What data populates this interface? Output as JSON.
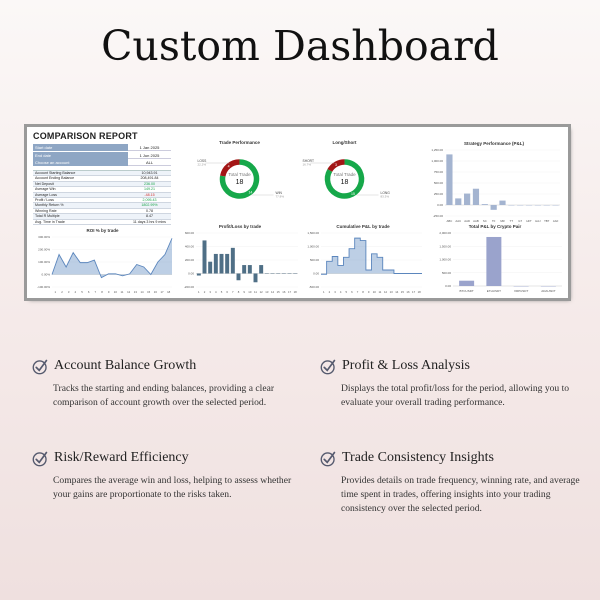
{
  "title": "Custom Dashboard",
  "report": {
    "title": "COMPARISON REPORT",
    "filters": [
      {
        "label": "Start date",
        "value": "1 Jan 2025"
      },
      {
        "label": "End date",
        "value": "1 Jun 2025"
      },
      {
        "label": "Choose an account",
        "value": "ALL"
      }
    ],
    "stats": [
      {
        "label": "Account Starting Balance",
        "value": "10,943.91",
        "color": "#222222"
      },
      {
        "label": "Account Ending Balance",
        "value": "208,491.84",
        "color": "#222222"
      },
      {
        "label": "Net Deposit",
        "value": "236.00",
        "color": "#1aa34a"
      },
      {
        "label": "Average Win",
        "value": "149.21",
        "color": "#1aa34a"
      },
      {
        "label": "Average Loss",
        "value": "-48.15",
        "color": "#d0312d"
      },
      {
        "label": "Profit / Loss",
        "value": "2,095.43",
        "color": "#1aa34a"
      },
      {
        "label": "Monthly Return %",
        "value": "1802.99%",
        "color": "#1aa34a"
      },
      {
        "label": "Winning Rate",
        "value": "0.78",
        "color": "#222222"
      },
      {
        "label": "Total R Multiple",
        "value": "8.47",
        "color": "#222222"
      },
      {
        "label": "Avg. Time in Trade",
        "value": "11 days 3 hrs 9 mins",
        "color": "#222222"
      }
    ]
  },
  "chart_data": [
    {
      "id": "trade-performance",
      "type": "pie",
      "title": "Trade Performance",
      "center_label": "Total Trade",
      "center_value": "18",
      "slices": [
        {
          "name": "LOSS",
          "value": 4,
          "pct": "22.2%",
          "color": "#a31616"
        },
        {
          "name": "WIN",
          "value": 14,
          "pct": "77.8%",
          "color": "#16a84a"
        }
      ]
    },
    {
      "id": "long-short",
      "type": "pie",
      "title": "Long/Short",
      "center_label": "Total Trade",
      "center_value": "18",
      "slices": [
        {
          "name": "SHORT",
          "value": 3,
          "pct": "16.7%",
          "color": "#a31616"
        },
        {
          "name": "LONG",
          "value": 15,
          "pct": "83.3%",
          "color": "#16a84a"
        }
      ]
    },
    {
      "id": "strategy-performance",
      "type": "bar",
      "title": "Strategy Performance (P&L)",
      "categories": [
        "ABC",
        "AAC",
        "AAD",
        "AAB",
        "SC",
        "TF",
        "MR",
        "TT",
        "GT",
        "HFT",
        "HAJ",
        "TBT",
        "AAF"
      ],
      "values": [
        1150,
        150,
        260,
        370,
        20,
        -110,
        100,
        0,
        0,
        0,
        0,
        0,
        0
      ],
      "ylim": [
        -250,
        1250
      ],
      "yticks": [
        -250,
        0,
        250,
        500,
        750,
        1000,
        1250
      ],
      "ytick_labels": [
        "-250.00",
        "0.00",
        "250.00",
        "500.00",
        "750.00",
        "1,000.00",
        "1,250.00"
      ],
      "color": "#a4b4d0",
      "grid": true
    },
    {
      "id": "roi-by-trade",
      "type": "area",
      "title": "ROI % by trade",
      "categories": [
        "1",
        "2",
        "3",
        "4",
        "5",
        "6",
        "7",
        "8",
        "9",
        "10",
        "11",
        "12",
        "13",
        "14",
        "15",
        "16",
        "17",
        "18"
      ],
      "values": [
        0,
        160,
        60,
        175,
        95,
        95,
        115,
        -25,
        5,
        5,
        -10,
        5,
        80,
        60,
        0,
        100,
        160,
        290
      ],
      "ylim": [
        -100,
        300
      ],
      "yticks": [
        -100,
        0,
        100,
        200,
        300
      ],
      "ytick_labels": [
        "-100.00%",
        "0.00%",
        "100.00%",
        "200.00%",
        "300.00%"
      ],
      "color": "#5b86bd",
      "grid": true
    },
    {
      "id": "profit-loss-by-trade",
      "type": "bar",
      "title": "Profit/Loss by trade",
      "categories": [
        "1",
        "2",
        "3",
        "4",
        "5",
        "6",
        "7",
        "8",
        "9",
        "10",
        "11",
        "12",
        "13",
        "14",
        "15",
        "16",
        "17",
        "18"
      ],
      "values": [
        -30,
        490,
        175,
        290,
        290,
        290,
        380,
        -100,
        125,
        125,
        -130,
        125,
        0,
        0,
        0,
        5,
        0,
        5
      ],
      "ylim": [
        -200,
        600
      ],
      "yticks": [
        -200,
        0,
        200,
        400,
        600
      ],
      "ytick_labels": [
        "-200.00",
        "0.00",
        "200.00",
        "400.00",
        "600.00"
      ],
      "color": "#4f6f86",
      "grid": true
    },
    {
      "id": "cumulative-pnl",
      "type": "step",
      "title": "Cumulative P&L by trade",
      "categories": [
        "1",
        "2",
        "3",
        "4",
        "5",
        "6",
        "7",
        "8",
        "9",
        "10",
        "11",
        "12",
        "13",
        "14",
        "15",
        "16",
        "17",
        "18"
      ],
      "values": [
        -30,
        450,
        630,
        300,
        600,
        920,
        1310,
        1220,
        130,
        730,
        600,
        130,
        130,
        0,
        0,
        0,
        0,
        0
      ],
      "ylim": [
        -500,
        1500
      ],
      "yticks": [
        -500,
        0,
        500,
        1000,
        1500
      ],
      "ytick_labels": [
        "-500.00",
        "0.00",
        "500.00",
        "1,000.00",
        "1,500.00"
      ],
      "color": "#5b86bd",
      "grid": true
    },
    {
      "id": "pnl-by-crypto-pair",
      "type": "bar",
      "title": "Total P&L by Crypto Pair",
      "categories": [
        "BTCUSDT",
        "ETHUSDT",
        "XRPUSDT",
        "ADAUSDT"
      ],
      "values": [
        200,
        1850,
        0,
        0
      ],
      "ylim": [
        0,
        2000
      ],
      "yticks": [
        0,
        500,
        1000,
        1500,
        2000
      ],
      "ytick_labels": [
        "0.00",
        "500.00",
        "1,000.00",
        "1,500.00",
        "2,000.00"
      ],
      "color": "#9aa3cc",
      "grid": true
    }
  ],
  "features": [
    {
      "title": "Account Balance Growth",
      "text": "Tracks the starting and ending balances, providing a clear comparison of account growth over the selected period.",
      "icon": "check-circle-icon"
    },
    {
      "title": "Profit & Loss Analysis",
      "text": "Displays the total profit/loss for the period, allowing you to evaluate your overall trading performance.",
      "icon": "check-circle-icon"
    },
    {
      "title": "Risk/Reward Efficiency",
      "text": "Compares the average win and loss, helping to assess whether your gains are proportionate to the risks taken.",
      "icon": "check-circle-icon"
    },
    {
      "title": "Trade Consistency Insights",
      "text": "Provides details on trade frequency, winning rate, and average time spent in trades, offering insights into your trading consistency over the selected period.",
      "icon": "check-circle-icon"
    }
  ]
}
